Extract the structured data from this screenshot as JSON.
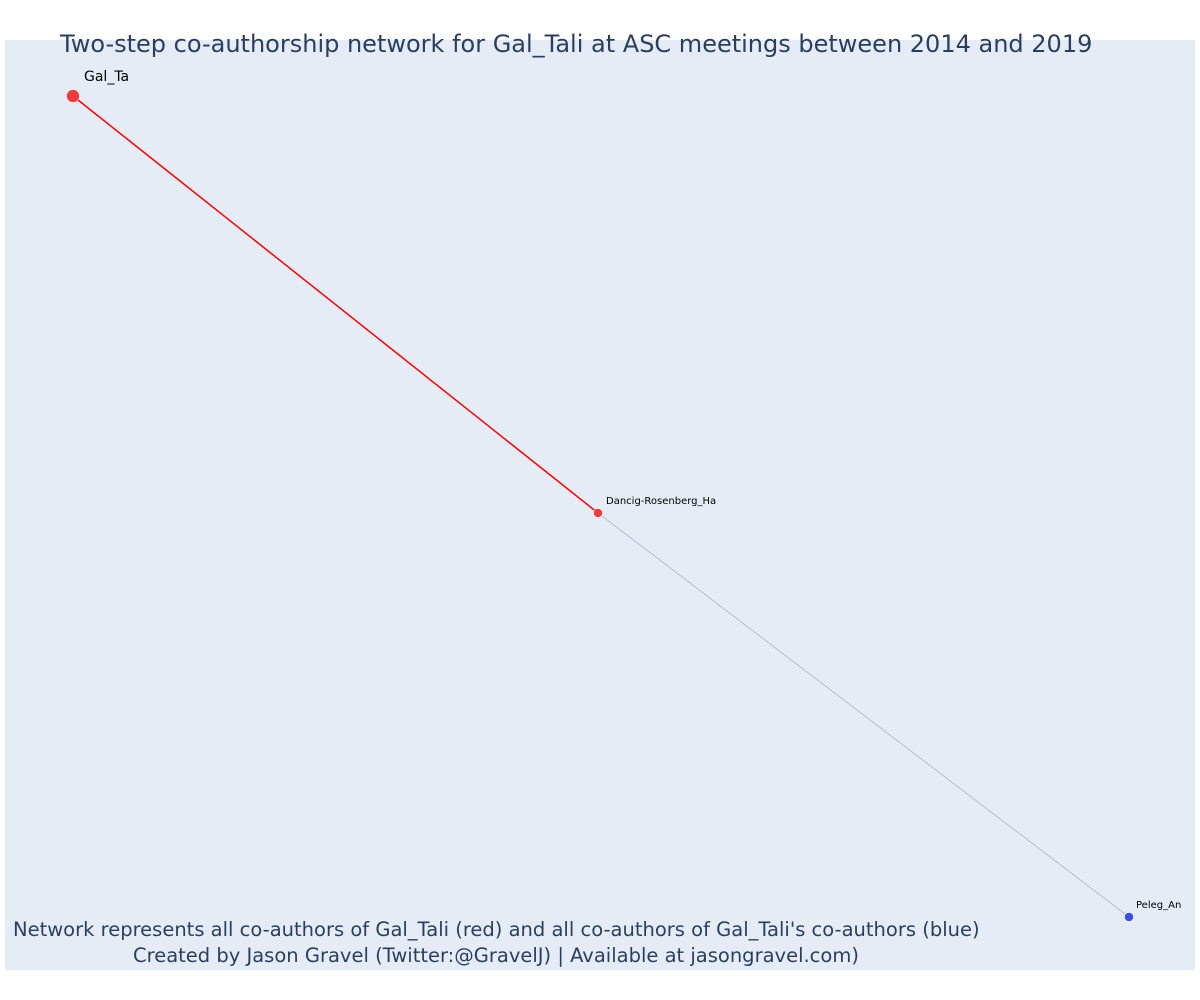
{
  "title": "Two-step co-authorship network for Gal_Tali at ASC meetings between 2014 and 2019",
  "caption": {
    "line1": "Network represents all co-authors of Gal_Tali (red) and all co-authors of Gal_Tali's co-authors (blue)",
    "line2": "Created by Jason Gravel (Twitter:@GravelJ) | Available at jasongravel.com)"
  },
  "colors": {
    "plot_background": "#e5ecf6",
    "ego_and_coauthor": "#ef3b3b",
    "second_step": "#3b4cef",
    "direct_edge": "#ff0000",
    "indirect_edge": "#b8bccc",
    "text": "#2a3f5f"
  },
  "nodes": [
    {
      "id": "n-gal",
      "label": "Gal_Ta",
      "group": "ego"
    },
    {
      "id": "n-dancig",
      "label": "Dancig-Rosenberg_Ha",
      "group": "coauthor"
    },
    {
      "id": "n-peleg",
      "label": "Peleg_An",
      "group": "second_step"
    }
  ],
  "edges": [
    {
      "source": "n-gal",
      "target": "n-dancig",
      "type": "direct"
    },
    {
      "source": "n-dancig",
      "target": "n-peleg",
      "type": "indirect"
    }
  ]
}
